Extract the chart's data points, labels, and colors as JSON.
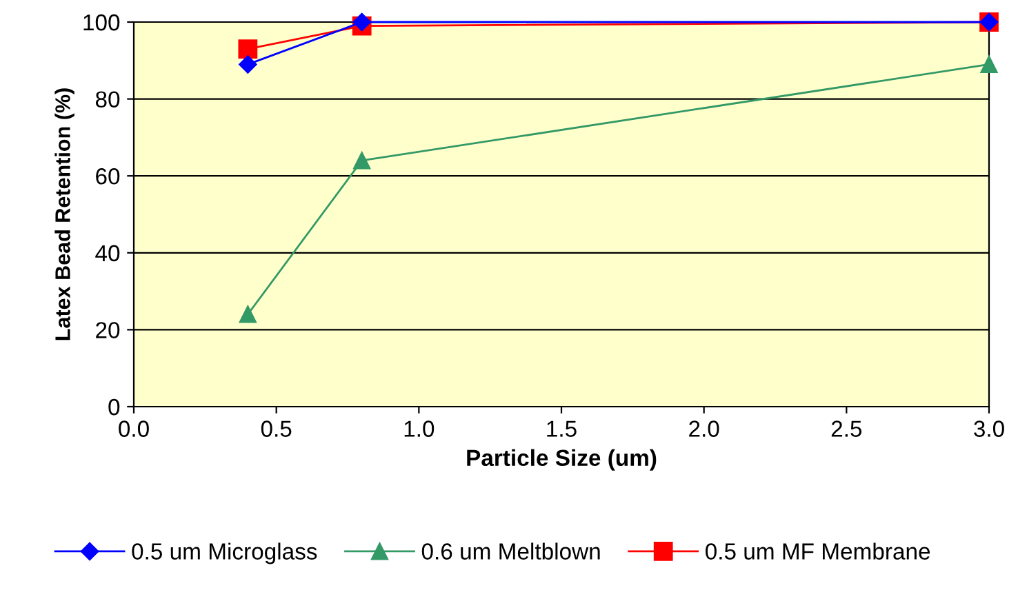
{
  "chart_data": {
    "type": "line",
    "xlabel": "Particle Size (um)",
    "ylabel": "Latex Bead Retention (%)",
    "x": [
      0.4,
      0.8,
      3.0
    ],
    "series": [
      {
        "name": "0.5 um Microglass",
        "color": "#0000ff",
        "marker": "diamond",
        "values": [
          89,
          100,
          100
        ]
      },
      {
        "name": "0.6 um Meltblown",
        "color": "#339966",
        "marker": "triangle",
        "values": [
          24,
          64,
          89
        ]
      },
      {
        "name": "0.5 um MF Membrane",
        "color": "#ff0000",
        "marker": "square",
        "values": [
          93,
          99,
          100
        ]
      }
    ],
    "xlim": [
      0.0,
      3.0
    ],
    "xticks": [
      {
        "value": 0.0,
        "label": "0.0"
      },
      {
        "value": 0.5,
        "label": "0.5"
      },
      {
        "value": 1.0,
        "label": "1.0"
      },
      {
        "value": 1.5,
        "label": "1.5"
      },
      {
        "value": 2.0,
        "label": "2.0"
      },
      {
        "value": 2.5,
        "label": "2.5"
      },
      {
        "value": 3.0,
        "label": "3.0"
      }
    ],
    "ylim": [
      0,
      100
    ],
    "yticks": [
      0,
      20,
      40,
      60,
      80,
      100
    ],
    "grid": "y",
    "legend": "bottom"
  }
}
